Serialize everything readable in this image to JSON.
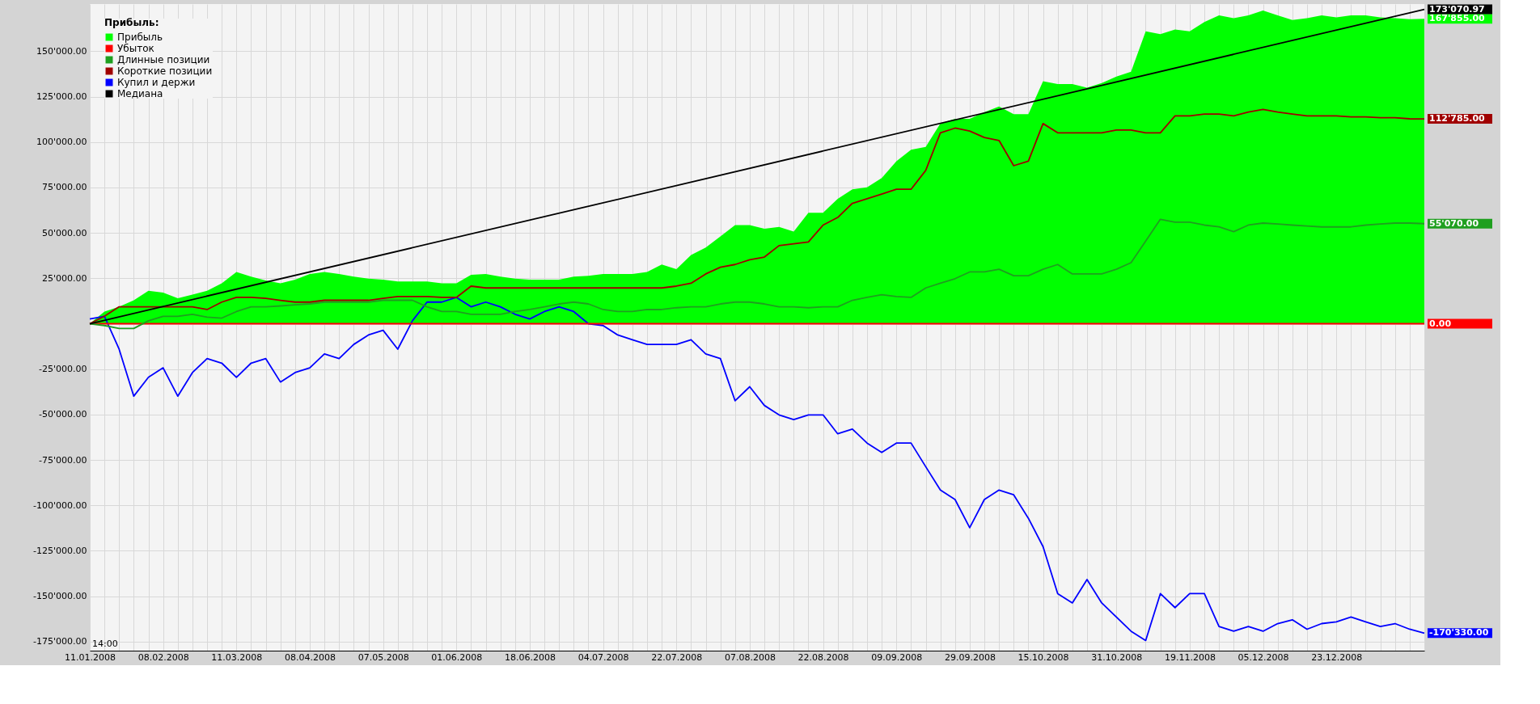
{
  "chart_data": {
    "type": "line",
    "legend_title": "Прибыль:",
    "categories": [
      "11.01.2008",
      null,
      null,
      null,
      null,
      "08.02.2008",
      null,
      null,
      null,
      null,
      "11.03.2008",
      null,
      null,
      null,
      null,
      "08.04.2008",
      null,
      null,
      null,
      null,
      "07.05.2008",
      null,
      null,
      null,
      null,
      "01.06.2008",
      null,
      null,
      null,
      null,
      "18.06.2008",
      null,
      null,
      null,
      null,
      "04.07.2008",
      null,
      null,
      null,
      null,
      "22.07.2008",
      null,
      null,
      null,
      null,
      "07.08.2008",
      null,
      null,
      null,
      null,
      "22.08.2008",
      null,
      null,
      null,
      null,
      "09.09.2008",
      null,
      null,
      null,
      null,
      "29.09.2008",
      null,
      null,
      null,
      null,
      "15.10.2008",
      null,
      null,
      null,
      null,
      "31.10.2008",
      null,
      null,
      null,
      null,
      "19.11.2008",
      null,
      null,
      null,
      null,
      "05.12.2008",
      null,
      null,
      null,
      null,
      "23.12.2008",
      null,
      null,
      null,
      null,
      null,
      null
    ],
    "series": [
      {
        "name": "Прибыль",
        "type": "area",
        "color": "#00ff00",
        "value_labels": [
          null,
          null,
          null,
          null,
          null,
          null,
          null,
          null,
          null,
          null,
          null,
          null,
          null,
          null,
          null,
          null,
          null,
          null,
          null,
          null,
          null,
          null,
          null,
          null,
          null,
          null,
          null,
          null,
          null,
          null,
          null,
          null,
          null,
          null,
          null,
          null,
          null,
          null,
          null,
          null,
          null,
          null,
          null,
          null,
          null,
          null,
          null,
          null,
          null,
          null,
          null,
          null,
          null,
          null,
          null,
          null,
          null,
          null,
          null,
          null,
          null,
          null,
          null,
          null,
          null,
          null,
          null,
          null,
          null,
          null,
          null,
          null,
          null,
          null,
          null,
          null,
          null,
          null,
          null,
          null,
          null,
          null,
          null,
          null,
          null,
          null,
          null,
          null,
          null,
          null,
          null,
          "167'855.00"
        ],
        "values": [
          0,
          6700,
          9300,
          12900,
          18100,
          17100,
          14000,
          16000,
          18100,
          22300,
          28500,
          25900,
          23800,
          22300,
          24300,
          27400,
          28500,
          27400,
          25900,
          24800,
          24300,
          23300,
          23300,
          23300,
          22300,
          22300,
          26900,
          27400,
          25900,
          24800,
          24300,
          24300,
          24300,
          25900,
          26400,
          27400,
          27400,
          27400,
          28500,
          32600,
          30000,
          37800,
          41900,
          48100,
          54300,
          54300,
          52300,
          53300,
          50700,
          61100,
          61100,
          68800,
          74000,
          75100,
          80200,
          89500,
          95800,
          97300,
          110200,
          112800,
          112800,
          116500,
          119600,
          115400,
          115400,
          133500,
          132000,
          132000,
          129900,
          132500,
          136100,
          138700,
          161000,
          159400,
          162000,
          161000,
          166100,
          169800,
          168200,
          169800,
          172400,
          169800,
          167200,
          168200,
          169800,
          168700,
          169800,
          169800,
          168700,
          168200,
          167700,
          167855
        ]
      },
      {
        "name": "Убыток",
        "color": "#ff0000",
        "value_labels": [
          null,
          null,
          null,
          null,
          null,
          null,
          null,
          null,
          null,
          null,
          null,
          null,
          null,
          null,
          null,
          null,
          null,
          null,
          null,
          null,
          null,
          null,
          null,
          null,
          null,
          null,
          null,
          null,
          null,
          null,
          null,
          null,
          null,
          null,
          null,
          null,
          null,
          null,
          null,
          null,
          null,
          null,
          null,
          null,
          null,
          null,
          null,
          null,
          null,
          null,
          null,
          null,
          null,
          null,
          null,
          null,
          null,
          null,
          null,
          null,
          null,
          null,
          null,
          null,
          null,
          null,
          null,
          null,
          null,
          null,
          null,
          null,
          null,
          null,
          null,
          null,
          null,
          null,
          null,
          null,
          null,
          null,
          null,
          null,
          null,
          null,
          null,
          null,
          null,
          null,
          null,
          "0.00"
        ],
        "values": [
          0,
          0,
          0,
          0,
          0,
          0,
          0,
          0,
          0,
          0,
          0,
          0,
          0,
          0,
          0,
          0,
          0,
          0,
          0,
          0,
          0,
          0,
          0,
          0,
          0,
          0,
          0,
          0,
          0,
          0,
          0,
          0,
          0,
          0,
          0,
          0,
          0,
          0,
          0,
          0,
          0,
          0,
          0,
          0,
          0,
          0,
          0,
          0,
          0,
          0,
          0,
          0,
          0,
          0,
          0,
          0,
          0,
          0,
          0,
          0,
          0,
          0,
          0,
          0,
          0,
          0,
          0,
          0,
          0,
          0,
          0,
          0,
          0,
          0,
          0,
          0,
          0,
          0,
          0,
          0,
          0,
          0,
          0,
          0,
          0,
          0,
          0,
          0,
          0,
          0,
          0,
          0
        ]
      },
      {
        "name": "Длинные позиции",
        "color": "#1f9f1f",
        "value_labels": [
          null,
          null,
          null,
          null,
          null,
          null,
          null,
          null,
          null,
          null,
          null,
          null,
          null,
          null,
          null,
          null,
          null,
          null,
          null,
          null,
          null,
          null,
          null,
          null,
          null,
          null,
          null,
          null,
          null,
          null,
          null,
          null,
          null,
          null,
          null,
          null,
          null,
          null,
          null,
          null,
          null,
          null,
          null,
          null,
          null,
          null,
          null,
          null,
          null,
          null,
          null,
          null,
          null,
          null,
          null,
          null,
          null,
          null,
          null,
          null,
          null,
          null,
          null,
          null,
          null,
          null,
          null,
          null,
          null,
          null,
          null,
          null,
          null,
          null,
          null,
          null,
          null,
          null,
          null,
          null,
          null,
          null,
          null,
          null,
          null,
          null,
          null,
          null,
          null,
          null,
          null,
          "55'070.00"
        ],
        "values": [
          0,
          -1000,
          -2600,
          -2600,
          1600,
          4100,
          4100,
          5200,
          3600,
          3100,
          6700,
          9300,
          9300,
          9800,
          10400,
          10900,
          11900,
          11900,
          11900,
          11900,
          12900,
          12900,
          12900,
          9300,
          6700,
          6700,
          5200,
          5200,
          5200,
          6700,
          7800,
          9300,
          10900,
          11900,
          10900,
          7800,
          6700,
          6700,
          7800,
          7800,
          8800,
          9300,
          9300,
          10900,
          11900,
          11900,
          10900,
          9300,
          9300,
          8800,
          9300,
          9300,
          12900,
          14500,
          16000,
          15000,
          14500,
          19700,
          22300,
          24800,
          28500,
          28500,
          30000,
          26400,
          26400,
          30000,
          32600,
          27400,
          27400,
          27400,
          30000,
          33600,
          45500,
          57500,
          55900,
          55900,
          54300,
          53300,
          50700,
          54300,
          55400,
          54900,
          54300,
          53800,
          53300,
          53300,
          53300,
          54300,
          54900,
          55400,
          55400,
          55070
        ]
      },
      {
        "name": "Короткие позиции",
        "color": "#a00000",
        "value_labels": [
          null,
          null,
          null,
          null,
          null,
          null,
          null,
          null,
          null,
          null,
          null,
          null,
          null,
          null,
          null,
          null,
          null,
          null,
          null,
          null,
          null,
          null,
          null,
          null,
          null,
          null,
          null,
          null,
          null,
          null,
          null,
          null,
          null,
          null,
          null,
          null,
          null,
          null,
          null,
          null,
          null,
          null,
          null,
          null,
          null,
          null,
          null,
          null,
          null,
          null,
          null,
          null,
          null,
          null,
          null,
          null,
          null,
          null,
          null,
          null,
          null,
          null,
          null,
          null,
          null,
          null,
          null,
          null,
          null,
          null,
          null,
          null,
          null,
          null,
          null,
          null,
          null,
          null,
          null,
          null,
          null,
          null,
          null,
          null,
          null,
          null,
          null,
          null,
          null,
          null,
          null,
          "112'785.00"
        ],
        "values": [
          0,
          4100,
          9300,
          9300,
          9300,
          9300,
          9300,
          9300,
          7800,
          11900,
          14500,
          14500,
          14000,
          12900,
          11900,
          11900,
          12900,
          12900,
          12900,
          12900,
          14000,
          15000,
          15000,
          15000,
          14500,
          14500,
          20700,
          19700,
          19700,
          19700,
          19700,
          19700,
          19700,
          19700,
          19700,
          19700,
          19700,
          19700,
          19700,
          19700,
          20700,
          22300,
          27400,
          31100,
          32600,
          35200,
          36700,
          43000,
          44000,
          45000,
          54300,
          58500,
          66300,
          68800,
          71400,
          74000,
          74000,
          84400,
          105100,
          107700,
          106100,
          102500,
          100900,
          87000,
          89500,
          110200,
          105100,
          105100,
          105100,
          105100,
          106600,
          106600,
          105100,
          105100,
          114400,
          114400,
          115400,
          115400,
          114400,
          116500,
          118000,
          116500,
          115400,
          114400,
          114400,
          114400,
          113900,
          113900,
          113400,
          113400,
          112800,
          112785
        ]
      },
      {
        "name": "Купил и держи",
        "color": "#0000ff",
        "value_labels": [
          null,
          null,
          null,
          null,
          null,
          null,
          null,
          null,
          null,
          null,
          null,
          null,
          null,
          null,
          null,
          null,
          null,
          null,
          null,
          null,
          null,
          null,
          null,
          null,
          null,
          null,
          null,
          null,
          null,
          null,
          null,
          null,
          null,
          null,
          null,
          null,
          null,
          null,
          null,
          null,
          null,
          null,
          null,
          null,
          null,
          null,
          null,
          null,
          null,
          null,
          null,
          null,
          null,
          null,
          null,
          null,
          null,
          null,
          null,
          null,
          null,
          null,
          null,
          null,
          null,
          null,
          null,
          null,
          null,
          null,
          null,
          null,
          null,
          null,
          null,
          null,
          null,
          null,
          null,
          null,
          null,
          null,
          null,
          null,
          null,
          null,
          null,
          null,
          null,
          null,
          null,
          "-170'330.00"
        ],
        "values": [
          2600,
          4100,
          -14000,
          -39900,
          -29500,
          -24300,
          -39900,
          -26900,
          -19200,
          -21700,
          -29500,
          -21700,
          -19200,
          -32100,
          -26900,
          -24300,
          -16600,
          -19200,
          -11400,
          -6200,
          -3600,
          -14000,
          1600,
          11900,
          11900,
          14500,
          9300,
          11900,
          9300,
          5200,
          2600,
          6700,
          9300,
          6700,
          0,
          -1000,
          -6200,
          -8800,
          -11400,
          -11400,
          -11400,
          -8800,
          -16600,
          -19200,
          -42400,
          -34700,
          -45000,
          -50200,
          -52800,
          -50200,
          -50200,
          -60600,
          -58000,
          -65700,
          -70900,
          -65700,
          -65700,
          -78700,
          -91600,
          -96800,
          -112300,
          -96800,
          -91600,
          -94200,
          -107100,
          -122700,
          -148600,
          -153700,
          -140800,
          -153700,
          -161500,
          -169300,
          -174400,
          -148600,
          -156300,
          -148600,
          -148600,
          -166700,
          -169300,
          -166700,
          -169300,
          -165100,
          -163000,
          -168200,
          -165100,
          -164100,
          -161500,
          -164100,
          -166700,
          -165100,
          -168200,
          -170330
        ]
      },
      {
        "name": "Медиана",
        "color": "#000000",
        "value_labels": [
          null,
          null,
          null,
          null,
          null,
          null,
          null,
          null,
          null,
          null,
          null,
          null,
          null,
          null,
          null,
          null,
          null,
          null,
          null,
          null,
          null,
          null,
          null,
          null,
          null,
          null,
          null,
          null,
          null,
          null,
          null,
          null,
          null,
          null,
          null,
          null,
          null,
          null,
          null,
          null,
          null,
          null,
          null,
          null,
          null,
          null,
          null,
          null,
          null,
          null,
          null,
          null,
          null,
          null,
          null,
          null,
          null,
          null,
          null,
          null,
          null,
          null,
          null,
          null,
          null,
          null,
          null,
          null,
          null,
          null,
          null,
          null,
          null,
          null,
          null,
          null,
          null,
          null,
          null,
          null,
          null,
          null,
          null,
          null,
          null,
          null,
          null,
          null,
          null,
          null,
          null,
          "173'070.97"
        ],
        "values": [
          0,
          null,
          null,
          null,
          null,
          null,
          null,
          null,
          null,
          null,
          null,
          null,
          null,
          null,
          null,
          null,
          null,
          null,
          null,
          null,
          null,
          null,
          null,
          null,
          null,
          null,
          null,
          null,
          null,
          null,
          null,
          null,
          null,
          null,
          null,
          null,
          null,
          null,
          null,
          null,
          null,
          null,
          null,
          null,
          null,
          null,
          null,
          null,
          null,
          null,
          null,
          null,
          null,
          null,
          null,
          null,
          null,
          null,
          null,
          null,
          null,
          null,
          null,
          null,
          null,
          null,
          null,
          null,
          null,
          null,
          null,
          null,
          null,
          null,
          null,
          null,
          null,
          null,
          null,
          null,
          null,
          null,
          null,
          null,
          null,
          null,
          null,
          null,
          null,
          null,
          null,
          173070.97
        ]
      }
    ],
    "ylim": [
      -180000,
      176000
    ],
    "yticks": [
      {
        "value": -175000,
        "label": "-175'000.00"
      },
      {
        "value": -150000,
        "label": "-150'000.00"
      },
      {
        "value": -125000,
        "label": "-125'000.00"
      },
      {
        "value": -100000,
        "label": "-100'000.00"
      },
      {
        "value": -75000,
        "label": "-75'000.00"
      },
      {
        "value": -50000,
        "label": "-50'000.00"
      },
      {
        "value": -25000,
        "label": "-25'000.00"
      },
      {
        "value": 0,
        "label": null
      },
      {
        "value": 25000,
        "label": "25'000.00"
      },
      {
        "value": 50000,
        "label": "50'000.00"
      },
      {
        "value": 75000,
        "label": "75'000.00"
      },
      {
        "value": 100000,
        "label": "100'000.00"
      },
      {
        "value": 125000,
        "label": "125'000.00"
      },
      {
        "value": 150000,
        "label": "150'000.00"
      }
    ],
    "annotations": [
      "14:00"
    ],
    "grid": true,
    "legend": "top left",
    "line_style": "solid",
    "marker": "none"
  }
}
